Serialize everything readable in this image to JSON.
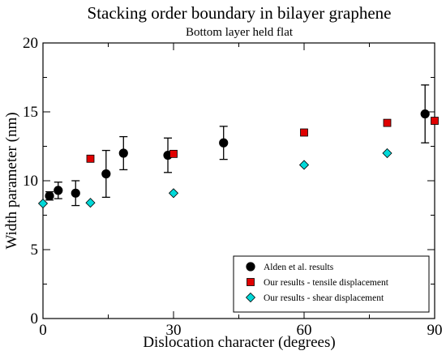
{
  "chart_data": {
    "type": "scatter",
    "title": "Stacking order boundary in bilayer graphene",
    "subtitle": "Bottom layer held flat",
    "xlabel": "Dislocation character (degrees)",
    "ylabel": "Width parameter (nm)",
    "xlim": [
      0,
      90
    ],
    "ylim": [
      0,
      20
    ],
    "x_ticks": [
      0,
      30,
      60,
      90
    ],
    "y_ticks": [
      0,
      5,
      10,
      15,
      20
    ],
    "grid": false,
    "legend_position": "bottom-right",
    "series": [
      {
        "name": "Alden et al. results",
        "marker": "circle",
        "color": "#000000",
        "points": [
          {
            "x": 1.5,
            "y": 8.9,
            "err": 0.3
          },
          {
            "x": 3.5,
            "y": 9.3,
            "err": 0.6
          },
          {
            "x": 7.5,
            "y": 9.1,
            "err": 0.9
          },
          {
            "x": 14.5,
            "y": 10.5,
            "err": 1.7
          },
          {
            "x": 18.5,
            "y": 12.0,
            "err": 1.2
          },
          {
            "x": 28.7,
            "y": 11.85,
            "err": 1.25
          },
          {
            "x": 41.5,
            "y": 12.75,
            "err": 1.2
          },
          {
            "x": 87.8,
            "y": 14.85,
            "err": 2.1
          }
        ]
      },
      {
        "name": "Our results - tensile displacement",
        "marker": "square",
        "color": "#e00000",
        "points": [
          {
            "x": 10.9,
            "y": 11.6
          },
          {
            "x": 30.0,
            "y": 11.95
          },
          {
            "x": 60.0,
            "y": 13.5
          },
          {
            "x": 79.1,
            "y": 14.2
          },
          {
            "x": 90.0,
            "y": 14.35
          }
        ]
      },
      {
        "name": "Our results - shear displacement",
        "marker": "diamond",
        "color": "#00d8d8",
        "points": [
          {
            "x": 0.0,
            "y": 8.35
          },
          {
            "x": 10.9,
            "y": 8.4
          },
          {
            "x": 30.0,
            "y": 9.1
          },
          {
            "x": 60.0,
            "y": 11.15
          },
          {
            "x": 79.1,
            "y": 12.0
          }
        ]
      }
    ]
  }
}
